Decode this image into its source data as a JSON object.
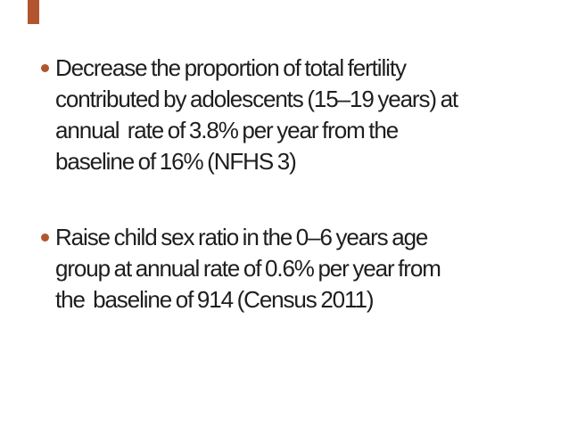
{
  "slide": {
    "background_color": "#ffffff",
    "text_color": "#1e1e1e",
    "accent_color": "#b0562e",
    "accent_bar": {
      "color": "#b2552e"
    },
    "bullets": [
      {
        "text": "Decrease the proportion of total fertility contributed by adolescents (15–19 years) at annual  rate of 3.8% per year from the baseline of 16% (NFHS 3)",
        "lines": [
          "Decrease the proportion of total fertility",
          "contributed by adolescents (15–19 years) at",
          "annual  rate of 3.8% per year from the",
          "baseline of 16% (NFHS 3)"
        ]
      },
      {
        "text": "Raise child sex ratio in the 0–6 years age group at annual rate of 0.6% per year from the  baseline of 914 (Census 2011)",
        "lines": [
          "Raise child sex ratio in the 0–6 years age",
          "group at annual rate of 0.6% per year from",
          "the  baseline of 914 (Census 2011)"
        ]
      }
    ]
  }
}
